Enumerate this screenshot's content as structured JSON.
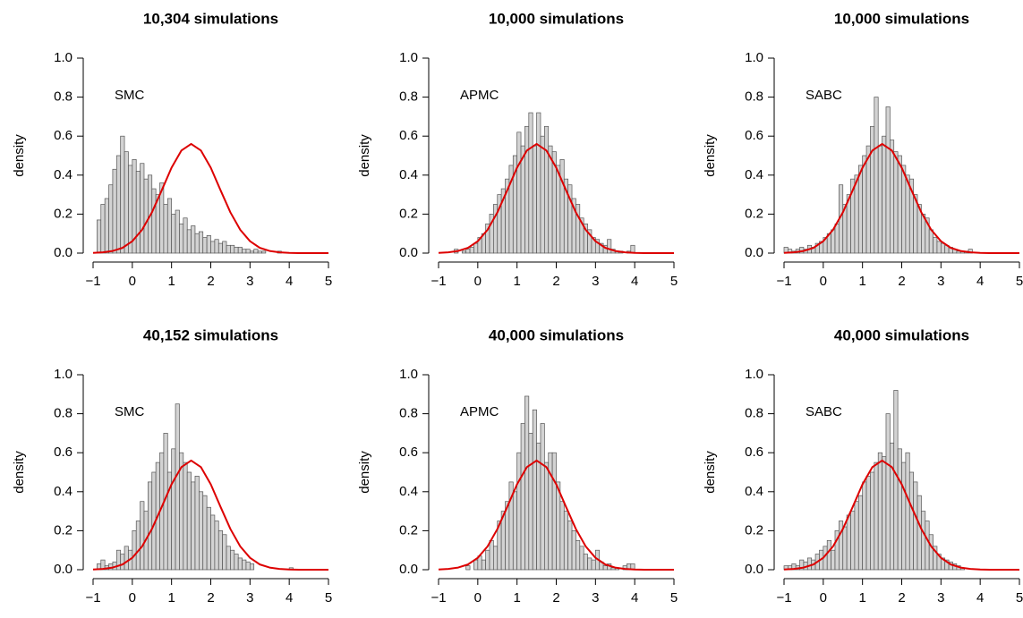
{
  "chart_data": [
    {
      "type": "histogram",
      "title": "10,304 simulations",
      "ylabel": "density",
      "annotation": "SMC",
      "bins": [
        -1.0,
        -0.9,
        -0.8,
        -0.7,
        -0.6,
        -0.5,
        -0.4,
        -0.3,
        -0.2,
        -0.1,
        0.0,
        0.1,
        0.2,
        0.3,
        0.4,
        0.5,
        0.6,
        0.7,
        0.8,
        0.9,
        1.0,
        1.1,
        1.2,
        1.3,
        1.4,
        1.5,
        1.6,
        1.7,
        1.8,
        1.9,
        2.0,
        2.1,
        2.2,
        2.3,
        2.4,
        2.5,
        2.6,
        2.7,
        2.8,
        2.9,
        3.0,
        3.1,
        3.2,
        3.3,
        3.4,
        3.5,
        3.6,
        3.7,
        3.8,
        3.9,
        4.0,
        4.1
      ],
      "counts": [
        0,
        0.17,
        0.25,
        0.28,
        0.35,
        0.43,
        0.5,
        0.6,
        0.52,
        0.45,
        0.48,
        0.42,
        0.46,
        0.38,
        0.4,
        0.33,
        0.3,
        0.36,
        0.25,
        0.28,
        0.2,
        0.22,
        0.15,
        0.18,
        0.12,
        0.14,
        0.1,
        0.11,
        0.08,
        0.09,
        0.06,
        0.07,
        0.05,
        0.06,
        0.04,
        0.04,
        0.03,
        0.03,
        0.02,
        0.02,
        0.01,
        0.02,
        0.01,
        0.01,
        0,
        0,
        0,
        0.01,
        0,
        0,
        0
      ],
      "color": "#d3d3d3",
      "curve": {
        "x": [
          -1,
          -0.75,
          -0.5,
          -0.25,
          0,
          0.25,
          0.5,
          0.75,
          1,
          1.25,
          1.5,
          1.75,
          2,
          2.25,
          2.5,
          2.75,
          3,
          3.25,
          3.5,
          3.75,
          4,
          4.25,
          4.5,
          4.75,
          5
        ],
        "values": [
          0.001,
          0.004,
          0.011,
          0.027,
          0.061,
          0.12,
          0.209,
          0.322,
          0.438,
          0.526,
          0.56,
          0.526,
          0.438,
          0.322,
          0.209,
          0.12,
          0.061,
          0.027,
          0.011,
          0.004,
          0.001,
          0,
          0,
          0,
          0
        ],
        "color": "#dd0000"
      },
      "xlim": [
        -1,
        5
      ],
      "ylim": [
        0,
        1
      ],
      "xticks": [
        {
          "value": -1,
          "label": "−1"
        },
        0,
        1,
        2,
        3,
        4,
        5
      ],
      "yticks": [
        {
          "value": 0,
          "label": "0.0"
        },
        {
          "value": 0.2,
          "label": "0.2"
        },
        {
          "value": 0.4,
          "label": "0.4"
        },
        {
          "value": 0.6,
          "label": "0.6"
        },
        {
          "value": 0.8,
          "label": "0.8"
        },
        {
          "value": 1,
          "label": "1.0"
        }
      ]
    },
    {
      "type": "histogram",
      "title": "10,000 simulations",
      "ylabel": "density",
      "annotation": "APMC",
      "bins": [
        -1.0,
        -0.9,
        -0.8,
        -0.7,
        -0.6,
        -0.5,
        -0.4,
        -0.3,
        -0.2,
        -0.1,
        0.0,
        0.1,
        0.2,
        0.3,
        0.4,
        0.5,
        0.6,
        0.7,
        0.8,
        0.9,
        1.0,
        1.1,
        1.2,
        1.3,
        1.4,
        1.5,
        1.6,
        1.7,
        1.8,
        1.9,
        2.0,
        2.1,
        2.2,
        2.3,
        2.4,
        2.5,
        2.6,
        2.7,
        2.8,
        2.9,
        3.0,
        3.1,
        3.2,
        3.3,
        3.4,
        3.5,
        3.6,
        3.7,
        3.8,
        3.9,
        4.0,
        4.1
      ],
      "counts": [
        0,
        0,
        0,
        0,
        0.02,
        0,
        0.01,
        0.02,
        0.03,
        0.05,
        0.08,
        0.1,
        0.15,
        0.2,
        0.25,
        0.3,
        0.33,
        0.38,
        0.45,
        0.5,
        0.62,
        0.55,
        0.65,
        0.72,
        0.55,
        0.72,
        0.6,
        0.65,
        0.55,
        0.52,
        0.45,
        0.48,
        0.38,
        0.35,
        0.28,
        0.25,
        0.18,
        0.15,
        0.12,
        0.08,
        0.07,
        0.05,
        0.04,
        0.07,
        0.02,
        0.01,
        0.01,
        0,
        0.01,
        0.04,
        0
      ],
      "color": "#d3d3d3",
      "curve": {
        "x": [
          -1,
          -0.75,
          -0.5,
          -0.25,
          0,
          0.25,
          0.5,
          0.75,
          1,
          1.25,
          1.5,
          1.75,
          2,
          2.25,
          2.5,
          2.75,
          3,
          3.25,
          3.5,
          3.75,
          4,
          4.25,
          4.5,
          4.75,
          5
        ],
        "values": [
          0.001,
          0.004,
          0.011,
          0.027,
          0.061,
          0.12,
          0.209,
          0.322,
          0.438,
          0.526,
          0.56,
          0.526,
          0.438,
          0.322,
          0.209,
          0.12,
          0.061,
          0.027,
          0.011,
          0.004,
          0.001,
          0,
          0,
          0,
          0
        ],
        "color": "#dd0000"
      },
      "xlim": [
        -1,
        5
      ],
      "ylim": [
        0,
        1
      ],
      "xticks": [
        {
          "value": -1,
          "label": "−1"
        },
        0,
        1,
        2,
        3,
        4,
        5
      ],
      "yticks": [
        {
          "value": 0,
          "label": "0.0"
        },
        {
          "value": 0.2,
          "label": "0.2"
        },
        {
          "value": 0.4,
          "label": "0.4"
        },
        {
          "value": 0.6,
          "label": "0.6"
        },
        {
          "value": 0.8,
          "label": "0.8"
        },
        {
          "value": 1,
          "label": "1.0"
        }
      ]
    },
    {
      "type": "histogram",
      "title": "10,000 simulations",
      "ylabel": "density",
      "annotation": "SABC",
      "bins": [
        -1.0,
        -0.9,
        -0.8,
        -0.7,
        -0.6,
        -0.5,
        -0.4,
        -0.3,
        -0.2,
        -0.1,
        0.0,
        0.1,
        0.2,
        0.3,
        0.4,
        0.5,
        0.6,
        0.7,
        0.8,
        0.9,
        1.0,
        1.1,
        1.2,
        1.3,
        1.4,
        1.5,
        1.6,
        1.7,
        1.8,
        1.9,
        2.0,
        2.1,
        2.2,
        2.3,
        2.4,
        2.5,
        2.6,
        2.7,
        2.8,
        2.9,
        3.0,
        3.1,
        3.2,
        3.3,
        3.4,
        3.5,
        3.6,
        3.7,
        3.8,
        3.9,
        4.0,
        4.1
      ],
      "counts": [
        0.03,
        0.02,
        0.01,
        0.02,
        0.03,
        0.02,
        0.04,
        0.03,
        0.05,
        0.06,
        0.08,
        0.1,
        0.12,
        0.15,
        0.35,
        0.25,
        0.3,
        0.38,
        0.4,
        0.45,
        0.5,
        0.55,
        0.65,
        0.8,
        0.55,
        0.6,
        0.75,
        0.58,
        0.52,
        0.5,
        0.45,
        0.4,
        0.38,
        0.3,
        0.25,
        0.2,
        0.18,
        0.12,
        0.08,
        0.06,
        0.05,
        0.04,
        0.03,
        0.02,
        0.01,
        0.01,
        0.01,
        0.02,
        0,
        0,
        0
      ],
      "color": "#d3d3d3",
      "curve": {
        "x": [
          -1,
          -0.75,
          -0.5,
          -0.25,
          0,
          0.25,
          0.5,
          0.75,
          1,
          1.25,
          1.5,
          1.75,
          2,
          2.25,
          2.5,
          2.75,
          3,
          3.25,
          3.5,
          3.75,
          4,
          4.25,
          4.5,
          4.75,
          5
        ],
        "values": [
          0.001,
          0.004,
          0.011,
          0.027,
          0.061,
          0.12,
          0.209,
          0.322,
          0.438,
          0.526,
          0.56,
          0.526,
          0.438,
          0.322,
          0.209,
          0.12,
          0.061,
          0.027,
          0.011,
          0.004,
          0.001,
          0,
          0,
          0,
          0
        ],
        "color": "#dd0000"
      },
      "xlim": [
        -1,
        5
      ],
      "ylim": [
        0,
        1
      ],
      "xticks": [
        {
          "value": -1,
          "label": "−1"
        },
        0,
        1,
        2,
        3,
        4,
        5
      ],
      "yticks": [
        {
          "value": 0,
          "label": "0.0"
        },
        {
          "value": 0.2,
          "label": "0.2"
        },
        {
          "value": 0.4,
          "label": "0.4"
        },
        {
          "value": 0.6,
          "label": "0.6"
        },
        {
          "value": 0.8,
          "label": "0.8"
        },
        {
          "value": 1,
          "label": "1.0"
        }
      ]
    },
    {
      "type": "histogram",
      "title": "40,152 simulations",
      "ylabel": "density",
      "annotation": "SMC",
      "bins": [
        -1.0,
        -0.9,
        -0.8,
        -0.7,
        -0.6,
        -0.5,
        -0.4,
        -0.3,
        -0.2,
        -0.1,
        0.0,
        0.1,
        0.2,
        0.3,
        0.4,
        0.5,
        0.6,
        0.7,
        0.8,
        0.9,
        1.0,
        1.1,
        1.2,
        1.3,
        1.4,
        1.5,
        1.6,
        1.7,
        1.8,
        1.9,
        2.0,
        2.1,
        2.2,
        2.3,
        2.4,
        2.5,
        2.6,
        2.7,
        2.8,
        2.9,
        3.0,
        3.1,
        3.2,
        3.3,
        3.4,
        3.5,
        3.6,
        3.7,
        3.8,
        3.9,
        4.0,
        4.1
      ],
      "counts": [
        0,
        0.03,
        0.05,
        0.02,
        0.03,
        0.04,
        0.1,
        0.08,
        0.12,
        0.1,
        0.2,
        0.25,
        0.35,
        0.3,
        0.45,
        0.5,
        0.55,
        0.6,
        0.7,
        0.5,
        0.62,
        0.85,
        0.6,
        0.55,
        0.5,
        0.45,
        0.48,
        0.4,
        0.38,
        0.32,
        0.28,
        0.25,
        0.2,
        0.18,
        0.12,
        0.1,
        0.08,
        0.06,
        0.05,
        0.04,
        0.03,
        0,
        0,
        0,
        0,
        0,
        0,
        0,
        0,
        0,
        0.01
      ],
      "color": "#d3d3d3",
      "curve": {
        "x": [
          -1,
          -0.75,
          -0.5,
          -0.25,
          0,
          0.25,
          0.5,
          0.75,
          1,
          1.25,
          1.5,
          1.75,
          2,
          2.25,
          2.5,
          2.75,
          3,
          3.25,
          3.5,
          3.75,
          4,
          4.25,
          4.5,
          4.75,
          5
        ],
        "values": [
          0.001,
          0.004,
          0.011,
          0.027,
          0.061,
          0.12,
          0.209,
          0.322,
          0.438,
          0.526,
          0.56,
          0.526,
          0.438,
          0.322,
          0.209,
          0.12,
          0.061,
          0.027,
          0.011,
          0.004,
          0.001,
          0,
          0,
          0,
          0
        ],
        "color": "#dd0000"
      },
      "xlim": [
        -1,
        5
      ],
      "ylim": [
        0,
        1
      ],
      "xticks": [
        {
          "value": -1,
          "label": "−1"
        },
        0,
        1,
        2,
        3,
        4,
        5
      ],
      "yticks": [
        {
          "value": 0,
          "label": "0.0"
        },
        {
          "value": 0.2,
          "label": "0.2"
        },
        {
          "value": 0.4,
          "label": "0.4"
        },
        {
          "value": 0.6,
          "label": "0.6"
        },
        {
          "value": 0.8,
          "label": "0.8"
        },
        {
          "value": 1,
          "label": "1.0"
        }
      ]
    },
    {
      "type": "histogram",
      "title": "40,000 simulations",
      "ylabel": "density",
      "annotation": "APMC",
      "bins": [
        -1.0,
        -0.9,
        -0.8,
        -0.7,
        -0.6,
        -0.5,
        -0.4,
        -0.3,
        -0.2,
        -0.1,
        0.0,
        0.1,
        0.2,
        0.3,
        0.4,
        0.5,
        0.6,
        0.7,
        0.8,
        0.9,
        1.0,
        1.1,
        1.2,
        1.3,
        1.4,
        1.5,
        1.6,
        1.7,
        1.8,
        1.9,
        2.0,
        2.1,
        2.2,
        2.3,
        2.4,
        2.5,
        2.6,
        2.7,
        2.8,
        2.9,
        3.0,
        3.1,
        3.2,
        3.3,
        3.4,
        3.5,
        3.6,
        3.7,
        3.8,
        3.9,
        4.0,
        4.1
      ],
      "counts": [
        0,
        0,
        0,
        0,
        0,
        0,
        0,
        0.02,
        0,
        0.05,
        0.07,
        0.05,
        0.1,
        0.15,
        0.12,
        0.25,
        0.3,
        0.35,
        0.45,
        0.4,
        0.6,
        0.75,
        0.89,
        0.7,
        0.82,
        0.65,
        0.75,
        0.55,
        0.6,
        0.6,
        0.45,
        0.35,
        0.3,
        0.25,
        0.2,
        0.15,
        0.12,
        0.08,
        0.06,
        0.05,
        0.1,
        0.04,
        0.02,
        0.03,
        0.01,
        0.01,
        0,
        0.02,
        0.03,
        0.03,
        0
      ],
      "color": "#d3d3d3",
      "curve": {
        "x": [
          -1,
          -0.75,
          -0.5,
          -0.25,
          0,
          0.25,
          0.5,
          0.75,
          1,
          1.25,
          1.5,
          1.75,
          2,
          2.25,
          2.5,
          2.75,
          3,
          3.25,
          3.5,
          3.75,
          4,
          4.25,
          4.5,
          4.75,
          5
        ],
        "values": [
          0.001,
          0.004,
          0.011,
          0.027,
          0.061,
          0.12,
          0.209,
          0.322,
          0.438,
          0.526,
          0.56,
          0.526,
          0.438,
          0.322,
          0.209,
          0.12,
          0.061,
          0.027,
          0.011,
          0.004,
          0.001,
          0,
          0,
          0,
          0
        ],
        "color": "#dd0000"
      },
      "xlim": [
        -1,
        5
      ],
      "ylim": [
        0,
        1
      ],
      "xticks": [
        {
          "value": -1,
          "label": "−1"
        },
        0,
        1,
        2,
        3,
        4,
        5
      ],
      "yticks": [
        {
          "value": 0,
          "label": "0.0"
        },
        {
          "value": 0.2,
          "label": "0.2"
        },
        {
          "value": 0.4,
          "label": "0.4"
        },
        {
          "value": 0.6,
          "label": "0.6"
        },
        {
          "value": 0.8,
          "label": "0.8"
        },
        {
          "value": 1,
          "label": "1.0"
        }
      ]
    },
    {
      "type": "histogram",
      "title": "40,000 simulations",
      "ylabel": "density",
      "annotation": "SABC",
      "bins": [
        -1.0,
        -0.9,
        -0.8,
        -0.7,
        -0.6,
        -0.5,
        -0.4,
        -0.3,
        -0.2,
        -0.1,
        0.0,
        0.1,
        0.2,
        0.3,
        0.4,
        0.5,
        0.6,
        0.7,
        0.8,
        0.9,
        1.0,
        1.1,
        1.2,
        1.3,
        1.4,
        1.5,
        1.6,
        1.7,
        1.8,
        1.9,
        2.0,
        2.1,
        2.2,
        2.3,
        2.4,
        2.5,
        2.6,
        2.7,
        2.8,
        2.9,
        3.0,
        3.1,
        3.2,
        3.3,
        3.4,
        3.5,
        3.6,
        3.7,
        3.8,
        3.9,
        4.0,
        4.1
      ],
      "counts": [
        0.02,
        0.02,
        0.03,
        0.02,
        0.05,
        0.04,
        0.06,
        0.05,
        0.08,
        0.1,
        0.12,
        0.15,
        0.1,
        0.2,
        0.25,
        0.22,
        0.28,
        0.3,
        0.35,
        0.38,
        0.45,
        0.48,
        0.5,
        0.55,
        0.6,
        0.58,
        0.8,
        0.65,
        0.92,
        0.62,
        0.55,
        0.6,
        0.5,
        0.45,
        0.38,
        0.3,
        0.25,
        0.18,
        0.12,
        0.08,
        0.06,
        0.05,
        0.04,
        0.03,
        0.02,
        0.01,
        0,
        0,
        0,
        0,
        0
      ],
      "color": "#d3d3d3",
      "curve": {
        "x": [
          -1,
          -0.75,
          -0.5,
          -0.25,
          0,
          0.25,
          0.5,
          0.75,
          1,
          1.25,
          1.5,
          1.75,
          2,
          2.25,
          2.5,
          2.75,
          3,
          3.25,
          3.5,
          3.75,
          4,
          4.25,
          4.5,
          4.75,
          5
        ],
        "values": [
          0.001,
          0.004,
          0.011,
          0.027,
          0.061,
          0.12,
          0.209,
          0.322,
          0.438,
          0.526,
          0.56,
          0.526,
          0.438,
          0.322,
          0.209,
          0.12,
          0.061,
          0.027,
          0.011,
          0.004,
          0.001,
          0,
          0,
          0,
          0
        ],
        "color": "#dd0000"
      },
      "xlim": [
        -1,
        5
      ],
      "ylim": [
        0,
        1
      ],
      "xticks": [
        {
          "value": -1,
          "label": "−1"
        },
        0,
        1,
        2,
        3,
        4,
        5
      ],
      "yticks": [
        {
          "value": 0,
          "label": "0.0"
        },
        {
          "value": 0.2,
          "label": "0.2"
        },
        {
          "value": 0.4,
          "label": "0.4"
        },
        {
          "value": 0.6,
          "label": "0.6"
        },
        {
          "value": 0.8,
          "label": "0.8"
        },
        {
          "value": 1,
          "label": "1.0"
        }
      ]
    }
  ]
}
